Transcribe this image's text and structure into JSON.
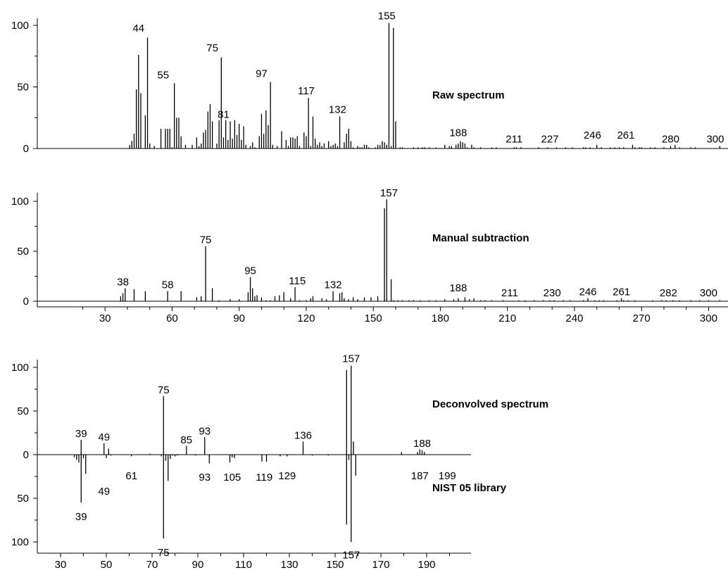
{
  "chart_data": [
    {
      "type": "bar",
      "title": "Raw spectrum",
      "ylim": [
        0,
        100
      ],
      "xlim": [
        20,
        330
      ],
      "yticks": [
        0,
        50,
        100
      ],
      "x_axis_shown": false,
      "peaks": [
        [
          41,
          3
        ],
        [
          42,
          6
        ],
        [
          43,
          12
        ],
        [
          44,
          48
        ],
        [
          45,
          76
        ],
        [
          46,
          45
        ],
        [
          48,
          27
        ],
        [
          49,
          90
        ],
        [
          50,
          4
        ],
        [
          52,
          2
        ],
        [
          55,
          16
        ],
        [
          57,
          16
        ],
        [
          58,
          16
        ],
        [
          59,
          16
        ],
        [
          60,
          1
        ],
        [
          61,
          53
        ],
        [
          62,
          25
        ],
        [
          63,
          25
        ],
        [
          64,
          10
        ],
        [
          66,
          3
        ],
        [
          69,
          3
        ],
        [
          71,
          9
        ],
        [
          72,
          2
        ],
        [
          73,
          4
        ],
        [
          74,
          13
        ],
        [
          75,
          15
        ],
        [
          76,
          30
        ],
        [
          77,
          36
        ],
        [
          78,
          22
        ],
        [
          80,
          4
        ],
        [
          81,
          23
        ],
        [
          82,
          74
        ],
        [
          83,
          9
        ],
        [
          84,
          23
        ],
        [
          85,
          7
        ],
        [
          86,
          22
        ],
        [
          87,
          8
        ],
        [
          88,
          23
        ],
        [
          89,
          11
        ],
        [
          90,
          20
        ],
        [
          91,
          7
        ],
        [
          92,
          18
        ],
        [
          93,
          3
        ],
        [
          95,
          2
        ],
        [
          96,
          5
        ],
        [
          97,
          1
        ],
        [
          99,
          10
        ],
        [
          100,
          28
        ],
        [
          101,
          12
        ],
        [
          102,
          31
        ],
        [
          103,
          19
        ],
        [
          104,
          54
        ],
        [
          105,
          3
        ],
        [
          107,
          2
        ],
        [
          109,
          14
        ],
        [
          111,
          7
        ],
        [
          112,
          2
        ],
        [
          113,
          9
        ],
        [
          114,
          9
        ],
        [
          115,
          8
        ],
        [
          116,
          10
        ],
        [
          117,
          2
        ],
        [
          119,
          13
        ],
        [
          120,
          10
        ],
        [
          121,
          41
        ],
        [
          122,
          2
        ],
        [
          123,
          26
        ],
        [
          124,
          8
        ],
        [
          125,
          3
        ],
        [
          126,
          5
        ],
        [
          127,
          2
        ],
        [
          128,
          4
        ],
        [
          130,
          6
        ],
        [
          131,
          2
        ],
        [
          132,
          3
        ],
        [
          133,
          4
        ],
        [
          134,
          2
        ],
        [
          135,
          26
        ],
        [
          137,
          5
        ],
        [
          138,
          12
        ],
        [
          139,
          16
        ],
        [
          140,
          6
        ],
        [
          141,
          1
        ],
        [
          143,
          2
        ],
        [
          144,
          1
        ],
        [
          145,
          1
        ],
        [
          146,
          3
        ],
        [
          147,
          3
        ],
        [
          148,
          1
        ],
        [
          151,
          1
        ],
        [
          152,
          3
        ],
        [
          153,
          3
        ],
        [
          154,
          6
        ],
        [
          155,
          5
        ],
        [
          156,
          3
        ],
        [
          157,
          102
        ],
        [
          158,
          2
        ],
        [
          159,
          98
        ],
        [
          160,
          22
        ],
        [
          162,
          1
        ],
        [
          163,
          1
        ],
        [
          168,
          1
        ],
        [
          170,
          1
        ],
        [
          172,
          1
        ],
        [
          173,
          1
        ],
        [
          175,
          1
        ],
        [
          178,
          1
        ],
        [
          182,
          3
        ],
        [
          184,
          2
        ],
        [
          185,
          2
        ],
        [
          187,
          3
        ],
        [
          188,
          4
        ],
        [
          189,
          6
        ],
        [
          190,
          5
        ],
        [
          191,
          4
        ],
        [
          192,
          1
        ],
        [
          194,
          3
        ],
        [
          195,
          1
        ],
        [
          198,
          1
        ],
        [
          203,
          1
        ],
        [
          205,
          1
        ],
        [
          213,
          1
        ],
        [
          214,
          1
        ],
        [
          216,
          1
        ],
        [
          224,
          1
        ],
        [
          228,
          1
        ],
        [
          232,
          1
        ],
        [
          236,
          1
        ],
        [
          239,
          1
        ],
        [
          244,
          1
        ],
        [
          245,
          1
        ],
        [
          247,
          1
        ],
        [
          250,
          3
        ],
        [
          252,
          1
        ],
        [
          256,
          1
        ],
        [
          258,
          1
        ],
        [
          260,
          1
        ],
        [
          262,
          1
        ],
        [
          266,
          3
        ],
        [
          267,
          1
        ],
        [
          269,
          1
        ],
        [
          270,
          1
        ],
        [
          274,
          1
        ],
        [
          276,
          1
        ],
        [
          280,
          1
        ],
        [
          283,
          2
        ],
        [
          285,
          3
        ],
        [
          287,
          1
        ],
        [
          292,
          1
        ],
        [
          294,
          1
        ],
        [
          305,
          2
        ]
      ],
      "labels": [
        {
          "text": "44",
          "x": 45,
          "y": 95
        },
        {
          "text": "55",
          "x": 56,
          "y": 57
        },
        {
          "text": "75",
          "x": 78,
          "y": 79
        },
        {
          "text": "81",
          "x": 83,
          "y": 25
        },
        {
          "text": "97",
          "x": 100,
          "y": 58
        },
        {
          "text": "117",
          "x": 120,
          "y": 44
        },
        {
          "text": "132",
          "x": 134,
          "y": 29
        },
        {
          "text": "155",
          "x": 156,
          "y": 105
        },
        {
          "text": "188",
          "x": 188,
          "y": 10
        },
        {
          "text": "211",
          "x": 213,
          "y": 5
        },
        {
          "text": "227",
          "x": 229,
          "y": 5
        },
        {
          "text": "246",
          "x": 248,
          "y": 8
        },
        {
          "text": "261",
          "x": 263,
          "y": 8
        },
        {
          "text": "280",
          "x": 283,
          "y": 5
        },
        {
          "text": "300",
          "x": 303,
          "y": 5
        }
      ]
    },
    {
      "type": "bar",
      "title": "Manual subtraction",
      "ylim": [
        0,
        100
      ],
      "xlim": [
        20,
        330
      ],
      "yticks": [
        0,
        50,
        100
      ],
      "xticks": [
        30,
        60,
        90,
        120,
        150,
        180,
        210,
        240,
        270,
        300
      ],
      "peaks": [
        [
          37,
          5
        ],
        [
          38,
          8
        ],
        [
          39,
          13
        ],
        [
          43,
          12
        ],
        [
          48,
          10
        ],
        [
          58,
          10
        ],
        [
          64,
          10
        ],
        [
          71,
          4
        ],
        [
          73,
          5
        ],
        [
          75,
          55
        ],
        [
          78,
          13
        ],
        [
          81,
          1
        ],
        [
          86,
          2
        ],
        [
          90,
          2
        ],
        [
          94,
          9
        ],
        [
          95,
          24
        ],
        [
          96,
          13
        ],
        [
          97,
          5
        ],
        [
          98,
          6
        ],
        [
          100,
          4
        ],
        [
          102,
          1
        ],
        [
          104,
          1
        ],
        [
          106,
          5
        ],
        [
          108,
          6
        ],
        [
          110,
          9
        ],
        [
          113,
          3
        ],
        [
          115,
          14
        ],
        [
          117,
          1
        ],
        [
          120,
          1
        ],
        [
          122,
          3
        ],
        [
          123,
          5
        ],
        [
          127,
          3
        ],
        [
          129,
          2
        ],
        [
          132,
          10
        ],
        [
          135,
          8
        ],
        [
          136,
          9
        ],
        [
          137,
          3
        ],
        [
          139,
          2
        ],
        [
          141,
          4
        ],
        [
          143,
          2
        ],
        [
          146,
          4
        ],
        [
          149,
          4
        ],
        [
          152,
          5
        ],
        [
          155,
          93
        ],
        [
          156,
          102
        ],
        [
          158,
          22
        ],
        [
          159,
          1
        ],
        [
          161,
          1
        ],
        [
          163,
          1
        ],
        [
          166,
          1
        ],
        [
          168,
          1
        ],
        [
          171,
          1
        ],
        [
          175,
          1
        ],
        [
          178,
          1
        ],
        [
          182,
          2
        ],
        [
          186,
          2
        ],
        [
          188,
          3
        ],
        [
          191,
          4
        ],
        [
          193,
          2
        ],
        [
          195,
          3
        ],
        [
          198,
          1
        ],
        [
          200,
          1
        ],
        [
          203,
          1
        ],
        [
          208,
          1
        ],
        [
          215,
          1
        ],
        [
          218,
          1
        ],
        [
          222,
          1
        ],
        [
          226,
          1
        ],
        [
          229,
          1
        ],
        [
          231,
          1
        ],
        [
          235,
          1
        ],
        [
          238,
          1
        ],
        [
          244,
          1
        ],
        [
          246,
          3
        ],
        [
          249,
          1
        ],
        [
          251,
          1
        ],
        [
          253,
          1
        ],
        [
          259,
          1
        ],
        [
          261,
          3
        ],
        [
          262,
          1
        ],
        [
          264,
          1
        ],
        [
          267,
          1
        ],
        [
          275,
          1
        ],
        [
          279,
          1
        ],
        [
          281,
          1
        ],
        [
          284,
          1
        ],
        [
          287,
          1
        ],
        [
          292,
          1
        ],
        [
          296,
          1
        ],
        [
          300,
          1
        ],
        [
          305,
          1
        ]
      ],
      "labels": [
        {
          "text": "38",
          "x": 38,
          "y": 16
        },
        {
          "text": "58",
          "x": 58,
          "y": 13
        },
        {
          "text": "75",
          "x": 75,
          "y": 58
        },
        {
          "text": "95",
          "x": 95,
          "y": 27
        },
        {
          "text": "115",
          "x": 116,
          "y": 17
        },
        {
          "text": "132",
          "x": 132,
          "y": 13
        },
        {
          "text": "157",
          "x": 157,
          "y": 105
        },
        {
          "text": "188",
          "x": 188,
          "y": 10
        },
        {
          "text": "211",
          "x": 211,
          "y": 5
        },
        {
          "text": "230",
          "x": 230,
          "y": 5
        },
        {
          "text": "246",
          "x": 246,
          "y": 6
        },
        {
          "text": "261",
          "x": 261,
          "y": 6
        },
        {
          "text": "282",
          "x": 282,
          "y": 5
        },
        {
          "text": "300",
          "x": 300,
          "y": 5
        }
      ]
    },
    {
      "type": "bar",
      "title": "Deconvolved spectrum",
      "mirror_title": "NIST 05 library",
      "ylim": [
        -100,
        100
      ],
      "xlim": [
        25,
        205
      ],
      "yticks": [
        -100,
        -50,
        0,
        50,
        100
      ],
      "ytick_labels": [
        "100",
        "50",
        "0",
        "50",
        "100"
      ],
      "xticks": [
        30,
        50,
        70,
        90,
        110,
        130,
        150,
        170,
        190
      ],
      "peaks": [
        [
          36,
          -3
        ],
        [
          37,
          -6
        ],
        [
          38,
          -9
        ],
        [
          39,
          17
        ],
        [
          40,
          -4
        ],
        [
          41,
          -22
        ],
        [
          49,
          13
        ],
        [
          50,
          -4
        ],
        [
          51,
          7
        ],
        [
          52,
          -1
        ],
        [
          61,
          -2
        ],
        [
          69,
          1
        ],
        [
          74,
          -2
        ],
        [
          75,
          67
        ],
        [
          76,
          -7
        ],
        [
          77,
          -30
        ],
        [
          78,
          -5
        ],
        [
          79,
          -1
        ],
        [
          80,
          -2
        ],
        [
          81,
          -1
        ],
        [
          85,
          10
        ],
        [
          89,
          -1
        ],
        [
          93,
          20
        ],
        [
          95,
          -10
        ],
        [
          104,
          -9
        ],
        [
          105,
          -3
        ],
        [
          106,
          -4
        ],
        [
          118,
          -8
        ],
        [
          120,
          -8
        ],
        [
          126,
          -2
        ],
        [
          129,
          -2
        ],
        [
          136,
          15
        ],
        [
          140,
          -1
        ],
        [
          147,
          -1
        ],
        [
          155,
          97
        ],
        [
          156,
          -6
        ],
        [
          157,
          102
        ],
        [
          158,
          15
        ],
        [
          159,
          -24
        ],
        [
          179,
          3
        ],
        [
          186,
          3
        ],
        [
          187,
          6
        ],
        [
          188,
          5
        ],
        [
          189,
          3
        ]
      ],
      "mirror_peaks": [
        [
          39,
          -55
        ],
        [
          75,
          -96
        ],
        [
          155,
          -80
        ],
        [
          157,
          -100
        ]
      ],
      "labels": [
        {
          "text": "39",
          "x": 39,
          "y": 20
        },
        {
          "text": "49",
          "x": 49,
          "y": 16
        },
        {
          "text": "75",
          "x": 75,
          "y": 70
        },
        {
          "text": "85",
          "x": 85,
          "y": 13
        },
        {
          "text": "93",
          "x": 93,
          "y": 23
        },
        {
          "text": "136",
          "x": 136,
          "y": 18
        },
        {
          "text": "157",
          "x": 157,
          "y": 106
        },
        {
          "text": "188",
          "x": 188,
          "y": 9
        },
        {
          "text": "61",
          "x": 61,
          "y": -24
        },
        {
          "text": "49",
          "x": 49,
          "y": -42
        },
        {
          "text": "93",
          "x": 93,
          "y": -26
        },
        {
          "text": "105",
          "x": 105,
          "y": -26
        },
        {
          "text": "119",
          "x": 119,
          "y": -26
        },
        {
          "text": "129",
          "x": 129,
          "y": -24
        },
        {
          "text": "187",
          "x": 187,
          "y": -24
        },
        {
          "text": "199",
          "x": 199,
          "y": -24
        },
        {
          "text": "39",
          "x": 39,
          "y": -71
        },
        {
          "text": "75",
          "x": 75,
          "y": -112
        },
        {
          "text": "157",
          "x": 157,
          "y": -115
        }
      ]
    }
  ]
}
